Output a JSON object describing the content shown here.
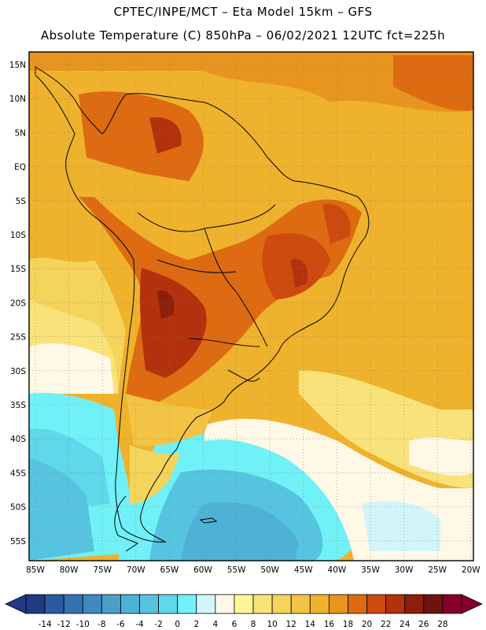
{
  "header": {
    "line1": "CPTEC/INPE/MCT –  Eta Model 15km – GFS",
    "line2": "Absolute Temperature (C) 850hPa – 06/02/2021 12UTC fct=225h"
  },
  "axes": {
    "lat_labels": [
      "15N",
      "10N",
      "5N",
      "EQ",
      "5S",
      "10S",
      "15S",
      "20S",
      "25S",
      "30S",
      "35S",
      "40S",
      "45S",
      "50S",
      "55S"
    ],
    "lon_labels": [
      "85W",
      "80W",
      "75W",
      "70W",
      "65W",
      "60W",
      "55W",
      "50W",
      "45W",
      "40W",
      "35W",
      "30W",
      "25W",
      "20W"
    ]
  },
  "colorbar": {
    "labels": [
      "-14",
      "-12",
      "-10",
      "-8",
      "-6",
      "-4",
      "-2",
      "0",
      "2",
      "4",
      "6",
      "8",
      "10",
      "12",
      "14",
      "16",
      "18",
      "20",
      "22",
      "24",
      "26",
      "28"
    ],
    "colors": [
      "#213a85",
      "#2b5aa0",
      "#3571b0",
      "#3f88c0",
      "#4a9ec8",
      "#4eb1d6",
      "#56c4e0",
      "#5fd8ea",
      "#70f1f7",
      "#d2f5fa",
      "#fff8e6",
      "#fdf79a",
      "#f9e27a",
      "#f5d45c",
      "#f2c345",
      "#efb22c",
      "#e8951f",
      "#de6b12",
      "#cd4a0e",
      "#b3310c",
      "#8c1e0c",
      "#6d1410",
      "#87002a"
    ],
    "low_arrow_color": "#213a85",
    "high_arrow_color": "#87002a"
  },
  "palette": {
    "ocean_warm": "#efb22c",
    "frame": "#000000"
  }
}
